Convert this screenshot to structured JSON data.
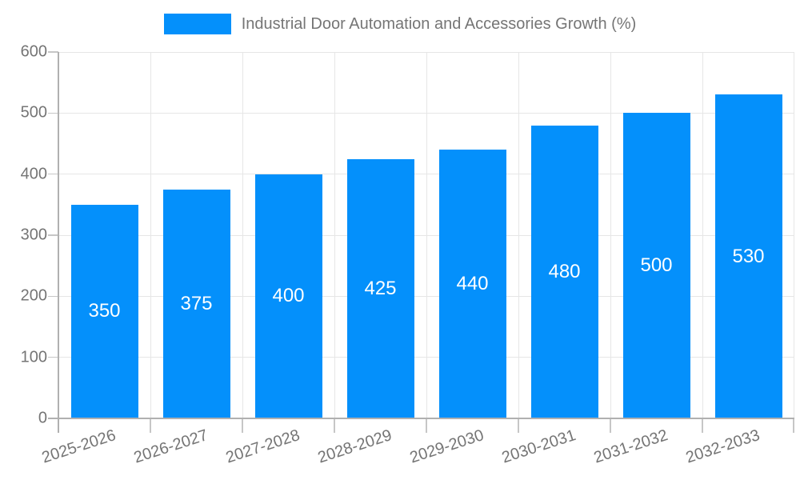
{
  "legend": {
    "label": "Industrial Door Automation and Accessories Growth (%)"
  },
  "chart_data": {
    "type": "bar",
    "title": "Industrial Door Automation and Accessories Growth (%)",
    "categories": [
      "2025-2026",
      "2026-2027",
      "2027-2028",
      "2028-2029",
      "2029-2030",
      "2030-2031",
      "2031-2032",
      "2032-2033"
    ],
    "values": [
      350,
      375,
      400,
      425,
      440,
      480,
      500,
      530
    ],
    "xlabel": "",
    "ylabel": "",
    "ylim": [
      0,
      600
    ],
    "yticks": [
      0,
      100,
      200,
      300,
      400,
      500,
      600
    ],
    "grid": true,
    "legend_position": "top-center",
    "colors": {
      "bar": "#0490fb",
      "value_label": "#ffffff",
      "axis_line": "#b0b0b0",
      "gridline": "#e6e6e6",
      "tick": "#c6c6c6",
      "text": "#757575",
      "background": "#ffffff"
    }
  }
}
